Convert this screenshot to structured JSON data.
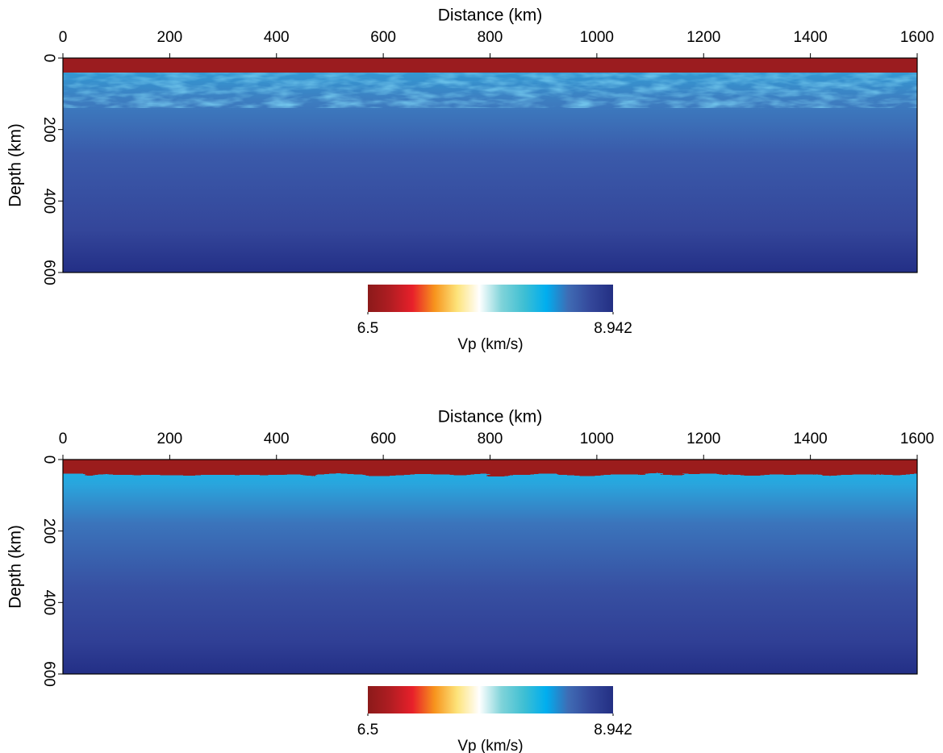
{
  "chart_data": [
    {
      "type": "heatmap",
      "xlabel": "Distance (km)",
      "ylabel": "Depth (km)",
      "xlim": [
        0,
        1600
      ],
      "xticks": [
        0,
        200,
        400,
        600,
        800,
        1000,
        1200,
        1400,
        1600
      ],
      "ylim": [
        0,
        600
      ],
      "yticks": [
        0,
        200,
        400,
        600
      ],
      "y_inverted": true,
      "colorbar": {
        "label": "Vp (km/s)",
        "lim": [
          6.5,
          8.942
        ],
        "ticks": [
          6.5,
          8.942
        ]
      },
      "colormap": [
        "#8b1a1a",
        "#b01d22",
        "#e8202a",
        "#f7941d",
        "#fde37a",
        "#ffffff",
        "#7fd3d9",
        "#3fbfd3",
        "#00aeef",
        "#3f6bb4",
        "#34479a",
        "#232f83"
      ]
    },
    {
      "type": "heatmap",
      "xlabel": "Distance (km)",
      "ylabel": "Depth (km)",
      "xlim": [
        0,
        1600
      ],
      "xticks": [
        0,
        200,
        400,
        600,
        800,
        1000,
        1200,
        1400,
        1600
      ],
      "ylim": [
        0,
        600
      ],
      "yticks": [
        0,
        200,
        400,
        600
      ],
      "y_inverted": true,
      "colorbar": {
        "label": "Vp (km/s)",
        "lim": [
          6.5,
          8.942
        ],
        "ticks": [
          6.5,
          8.942
        ]
      },
      "colormap": [
        "#8b1a1a",
        "#b01d22",
        "#e8202a",
        "#f7941d",
        "#fde37a",
        "#ffffff",
        "#7fd3d9",
        "#3fbfd3",
        "#00aeef",
        "#3f6bb4",
        "#34479a",
        "#232f83"
      ]
    }
  ]
}
